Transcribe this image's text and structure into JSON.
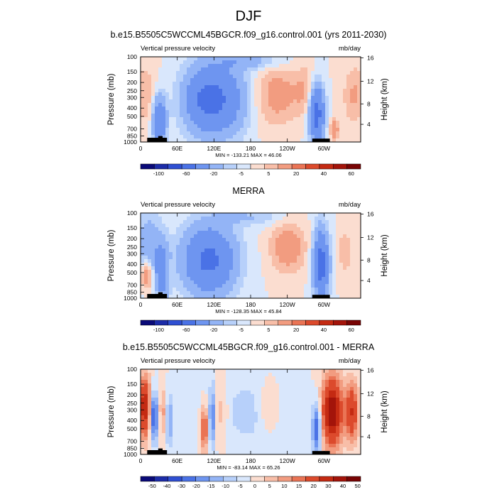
{
  "figure": {
    "title": "DJF"
  },
  "chart_data": [
    {
      "type": "heatmap",
      "title": "b.e15.B5505C5WCCML45BGCR.f09_g16.control.001 (yrs 2011-2030)",
      "left_label": "Vertical pressure velocity",
      "right_label": "mb/day",
      "ylabel": "Pressure (mb)",
      "ylabel_right": "Height (km)",
      "pressure_ticks": [
        "100",
        "150",
        "200",
        "250",
        "300",
        "400",
        "500",
        "700",
        "850",
        "1000"
      ],
      "height_ticks": [
        "16",
        "12",
        "8",
        "4"
      ],
      "x_ticks": [
        "0",
        "60E",
        "120E",
        "180",
        "120W",
        "60W"
      ],
      "stats": "MIN = -133.21   MAX =  46.06",
      "colorbar_labels": [
        "-100",
        "-60",
        "-20",
        "-5",
        "5",
        "20",
        "40",
        "60"
      ],
      "colorbar_colors": [
        "#0a0a78",
        "#1c2ca8",
        "#2f4fd2",
        "#4a72e6",
        "#6e95f0",
        "#93b4f6",
        "#b7d0fa",
        "#d9e7fc",
        "#fbddd0",
        "#f8bea8",
        "#f29c80",
        "#ea7455",
        "#dc4a2c",
        "#c42a12",
        "#a3140a",
        "#780404"
      ]
    },
    {
      "type": "heatmap",
      "title": "MERRA",
      "left_label": "Vertical pressure velocity",
      "right_label": "mb/day",
      "ylabel": "Pressure (mb)",
      "ylabel_right": "Height (km)",
      "pressure_ticks": [
        "100",
        "150",
        "200",
        "250",
        "300",
        "400",
        "500",
        "700",
        "850",
        "1000"
      ],
      "height_ticks": [
        "16",
        "12",
        "8",
        "4"
      ],
      "x_ticks": [
        "0",
        "60E",
        "120E",
        "180",
        "120W",
        "60W"
      ],
      "stats": "MIN = -128.35   MAX =  45.84",
      "colorbar_labels": [
        "-100",
        "-60",
        "-20",
        "-5",
        "5",
        "20",
        "40",
        "60"
      ],
      "colorbar_colors": [
        "#0a0a78",
        "#1c2ca8",
        "#2f4fd2",
        "#4a72e6",
        "#6e95f0",
        "#93b4f6",
        "#b7d0fa",
        "#d9e7fc",
        "#fbddd0",
        "#f8bea8",
        "#f29c80",
        "#ea7455",
        "#dc4a2c",
        "#c42a12",
        "#a3140a",
        "#780404"
      ]
    },
    {
      "type": "heatmap",
      "title": "b.e15.B5505C5WCCML45BGCR.f09_g16.control.001 - MERRA",
      "left_label": "Vertical pressure velocity",
      "right_label": "mb/day",
      "ylabel": "Pressure (mb)",
      "ylabel_right": "Height (km)",
      "pressure_ticks": [
        "100",
        "150",
        "200",
        "250",
        "300",
        "400",
        "500",
        "700",
        "850",
        "1000"
      ],
      "height_ticks": [
        "16",
        "12",
        "8",
        "4"
      ],
      "x_ticks": [
        "0",
        "60E",
        "120E",
        "180",
        "120W",
        "60W"
      ],
      "stats": "MIN = -83.14   MAX =  65.26",
      "colorbar_labels": [
        "-50",
        "-40",
        "-30",
        "-20",
        "-15",
        "-10",
        "-5",
        "0",
        "5",
        "10",
        "15",
        "20",
        "30",
        "40",
        "50"
      ],
      "colorbar_colors": [
        "#0a0a78",
        "#1c2ca8",
        "#2f4fd2",
        "#4a72e6",
        "#6e95f0",
        "#93b4f6",
        "#b7d0fa",
        "#d9e7fc",
        "#fbddd0",
        "#f8bea8",
        "#f29c80",
        "#ea7455",
        "#dc4a2c",
        "#c42a12",
        "#a3140a",
        "#780404"
      ]
    }
  ]
}
